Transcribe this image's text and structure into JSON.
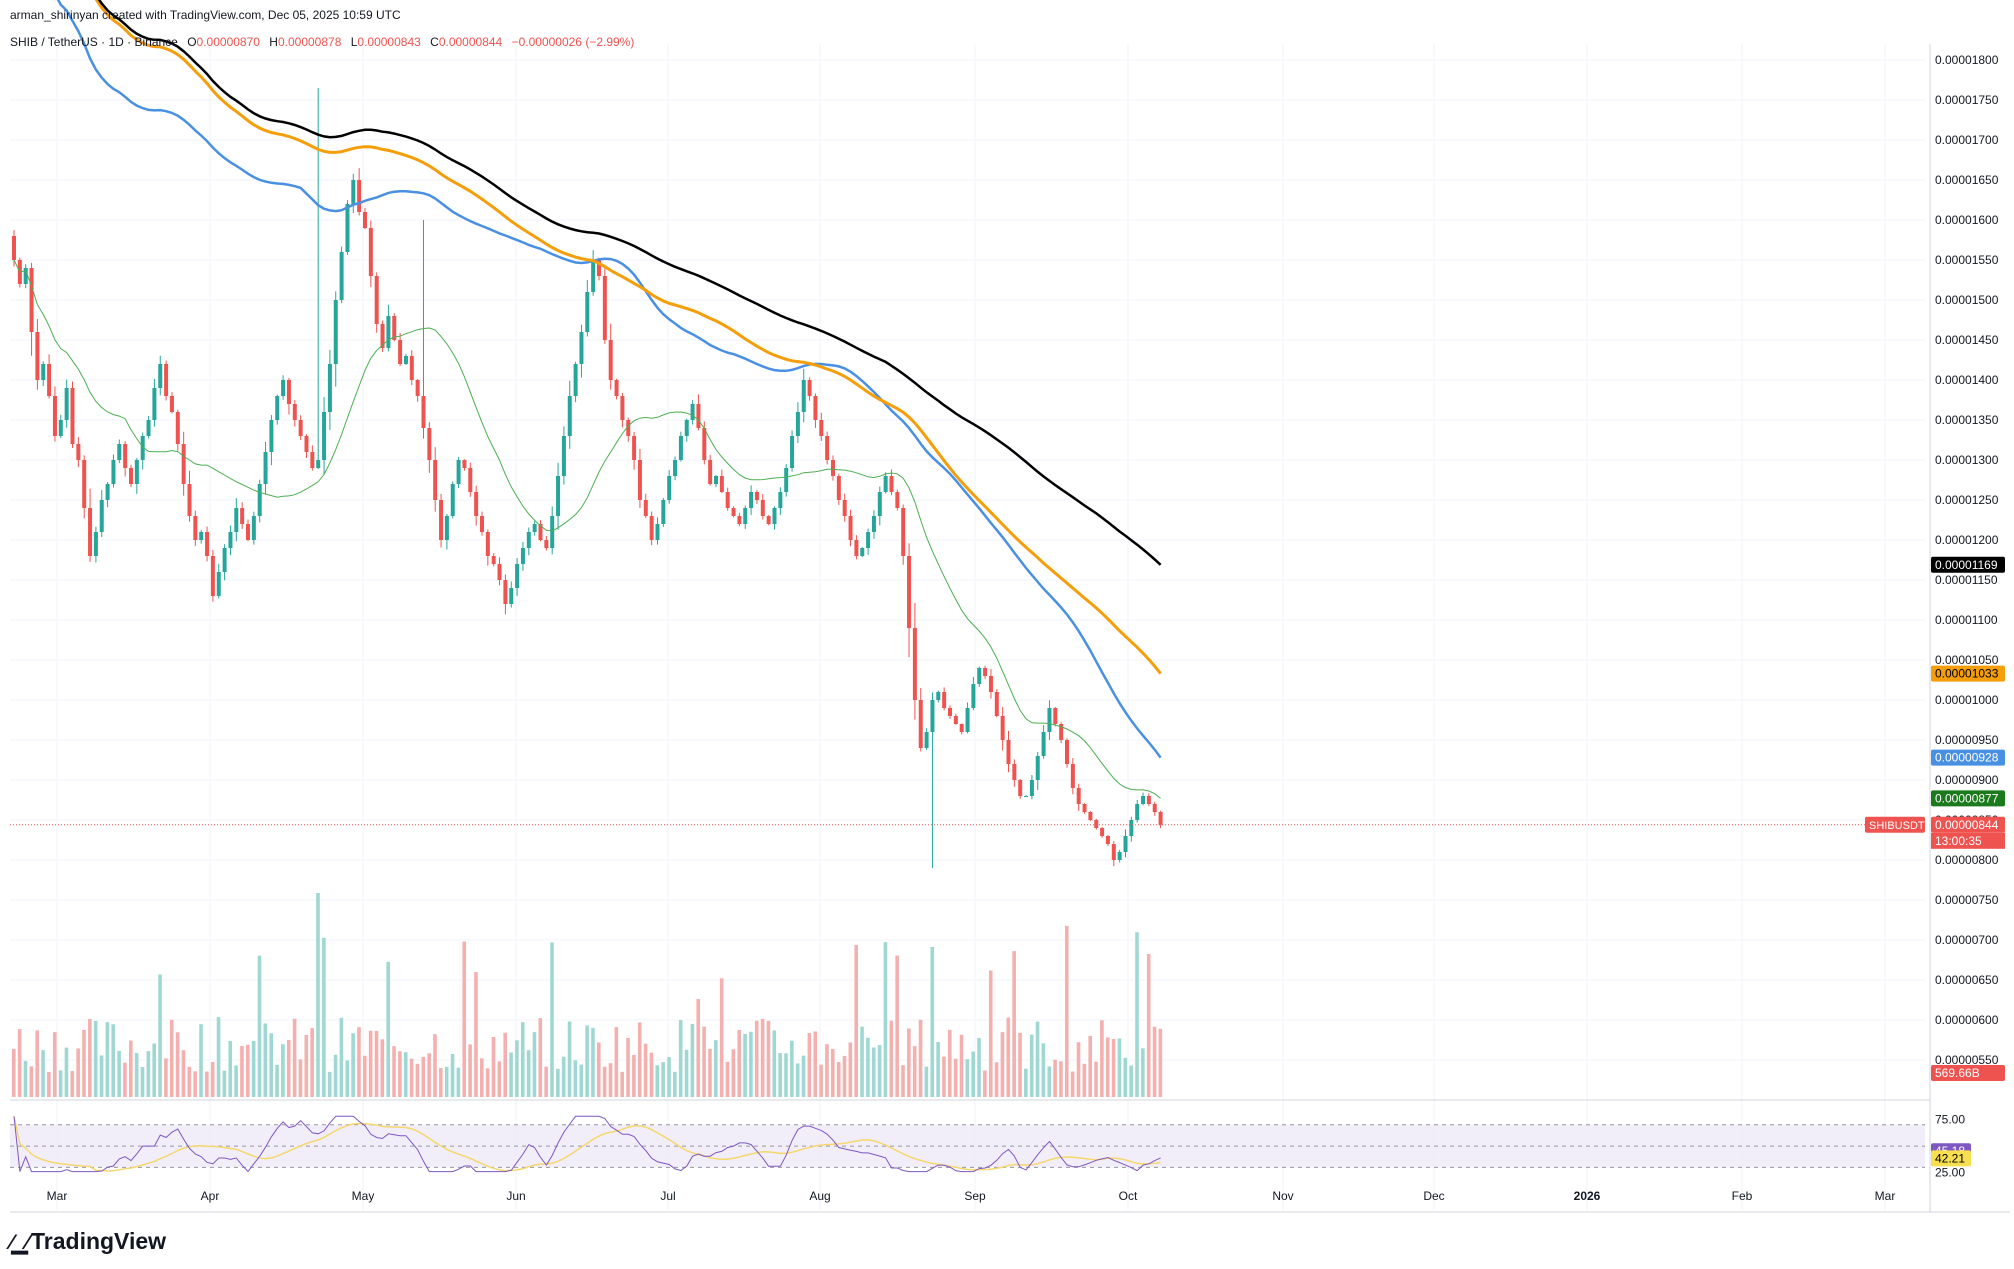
{
  "header": {
    "credit": "arman_shirinyan created with TradingView.com, Dec 05, 2025 10:59 UTC",
    "symbol_line": "SHIB / TetherUS · 1D · Binance",
    "ohlc": {
      "o_label": "O",
      "o": "0.00000870",
      "h_label": "H",
      "h": "0.00000878",
      "l_label": "L",
      "l": "0.00000843",
      "c_label": "C",
      "c": "0.00000844",
      "change": "−0.00000026 (−2.99%)"
    }
  },
  "branding": {
    "logo_text": "TradingView"
  },
  "colors": {
    "up": "#26a69a",
    "down": "#ef5350",
    "ma200": "#000000",
    "ma100": "#f59e0b",
    "ma50": "#4a90e2",
    "ma20": "#4caf50",
    "rsi": "#7e57c2",
    "rsi_ma": "#f5d76e"
  },
  "chart_data": {
    "type": "candlestick",
    "symbol": "SHIBUSDT",
    "price_axis": {
      "ticks": [
        "0.00001800",
        "0.00001750",
        "0.00001700",
        "0.00001650",
        "0.00001600",
        "0.00001550",
        "0.00001500",
        "0.00001450",
        "0.00001400",
        "0.00001350",
        "0.00001300",
        "0.00001250",
        "0.00001200",
        "0.00001150",
        "0.00001100",
        "0.00001050",
        "0.00001000",
        "0.00000950",
        "0.00000900",
        "0.00000850",
        "0.00000800",
        "0.00000750",
        "0.00000700",
        "0.00000650",
        "0.00000600",
        "0.00000550"
      ],
      "range": [
        5e-06,
        1.82e-05
      ]
    },
    "time_axis": [
      "Mar",
      "Apr",
      "May",
      "Jun",
      "Jul",
      "Aug",
      "Sep",
      "Oct",
      "Nov",
      "Dec",
      "2026",
      "Feb",
      "Mar"
    ],
    "price_labels": [
      {
        "name": "ma200",
        "value": "0.00001169",
        "bg": "#000000",
        "fg": "#ffffff"
      },
      {
        "name": "ma100",
        "value": "0.00001033",
        "bg": "#f59e0b",
        "fg": "#000000"
      },
      {
        "name": "ma50",
        "value": "0.00000928",
        "bg": "#4a90e2",
        "fg": "#ffffff"
      },
      {
        "name": "ma20",
        "value": "0.00000877",
        "bg": "#1b7a1b",
        "fg": "#ffffff"
      },
      {
        "name": "last",
        "value": "0.00000844",
        "bg": "#ef5350",
        "fg": "#ffffff"
      }
    ],
    "last_price": 8.44e-06,
    "countdown": "13:00:35",
    "volume_label": "569.66B",
    "rsi": {
      "ticks": [
        "75.00",
        "25.00"
      ],
      "range": [
        20,
        82
      ],
      "value": "45.18",
      "ma_value": "42.21",
      "band": [
        30,
        70
      ]
    },
    "closes": [
      1550,
      1520,
      1540,
      1460,
      1400,
      1420,
      1380,
      1330,
      1350,
      1390,
      1320,
      1300,
      1240,
      1180,
      1210,
      1250,
      1270,
      1300,
      1320,
      1290,
      1270,
      1300,
      1330,
      1350,
      1390,
      1420,
      1380,
      1360,
      1320,
      1270,
      1230,
      1200,
      1210,
      1180,
      1130,
      1160,
      1190,
      1210,
      1240,
      1220,
      1200,
      1230,
      1270,
      1310,
      1350,
      1380,
      1400,
      1370,
      1350,
      1330,
      1310,
      1290,
      1300,
      1360,
      1420,
      1500,
      1560,
      1620,
      1650,
      1610,
      1590,
      1530,
      1470,
      1440,
      1480,
      1450,
      1420,
      1430,
      1400,
      1380,
      1340,
      1300,
      1250,
      1200,
      1230,
      1270,
      1300,
      1290,
      1260,
      1230,
      1210,
      1180,
      1170,
      1150,
      1120,
      1140,
      1170,
      1190,
      1210,
      1220,
      1200,
      1190,
      1230,
      1280,
      1330,
      1380,
      1420,
      1460,
      1510,
      1550,
      1530,
      1450,
      1400,
      1380,
      1350,
      1330,
      1300,
      1250,
      1230,
      1200,
      1220,
      1250,
      1280,
      1300,
      1330,
      1350,
      1370,
      1340,
      1300,
      1270,
      1280,
      1260,
      1240,
      1230,
      1220,
      1240,
      1260,
      1250,
      1230,
      1220,
      1240,
      1260,
      1290,
      1330,
      1360,
      1400,
      1380,
      1350,
      1330,
      1300,
      1280,
      1250,
      1230,
      1200,
      1180,
      1190,
      1210,
      1230,
      1260,
      1280,
      1260,
      1240,
      1180,
      1090,
      1000,
      940,
      960,
      1000,
      1010,
      990,
      980,
      970,
      960,
      990,
      1020,
      1040,
      1030,
      1010,
      980,
      950,
      920,
      900,
      880,
      880,
      900,
      930,
      960,
      990,
      970,
      950,
      920,
      890,
      870,
      860,
      850,
      840,
      830,
      820,
      800,
      810,
      830,
      850,
      870,
      880,
      870,
      860,
      844
    ]
  }
}
